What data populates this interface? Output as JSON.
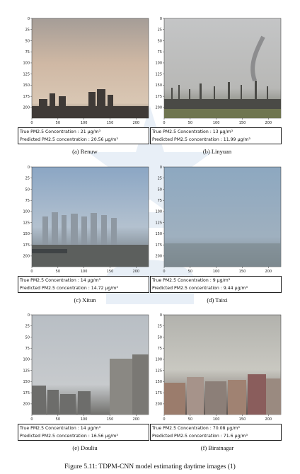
{
  "panels": [
    {
      "id": "a",
      "label": "(a)  Renuw",
      "true_line": "True PM2.5 Concentration : 21 μg/m³",
      "pred_line": "Predicted PM2.5 concentration : 20.56 μg/m³"
    },
    {
      "id": "b",
      "label": "(b)  Linyuan",
      "true_line": "True PM2.5 Concentration : 13 μg/m³",
      "pred_line": "Predicted PM2.5 concentration : 11.99 μg/m³"
    },
    {
      "id": "c",
      "label": "(c)  Xitun",
      "true_line": "True PM2.5 Concentration : 14 μg/m³",
      "pred_line": "Predicted PM2.5 concentration : 14.72 μg/m³"
    },
    {
      "id": "d",
      "label": "(d)  Taixi",
      "true_line": "True PM2.5 Concentration : 9 μg/m³",
      "pred_line": "Predicted PM2.5 concentration : 9.44 μg/m³"
    },
    {
      "id": "e",
      "label": "(e)  Douliu",
      "true_line": "True PM2.5 Concentration : 14 μg/m³",
      "pred_line": "Predicted PM2.5 concentration : 16.56 μg/m³"
    },
    {
      "id": "f",
      "label": "(f)  Biratnagar",
      "true_line": "True PM2.5 Concentration : 70.08 μg/m³",
      "pred_line": "Predicted PM2.5 concentration : 71.6 μg/m³"
    }
  ],
  "axes": {
    "y_ticks": [
      "0",
      "25",
      "50",
      "75",
      "100",
      "125",
      "150",
      "175",
      "200"
    ],
    "x_ticks": [
      "0",
      "50",
      "100",
      "150",
      "200"
    ]
  },
  "figure_caption": "Figure 5.11: TDPM-CNN model estimating daytime images (1)"
}
